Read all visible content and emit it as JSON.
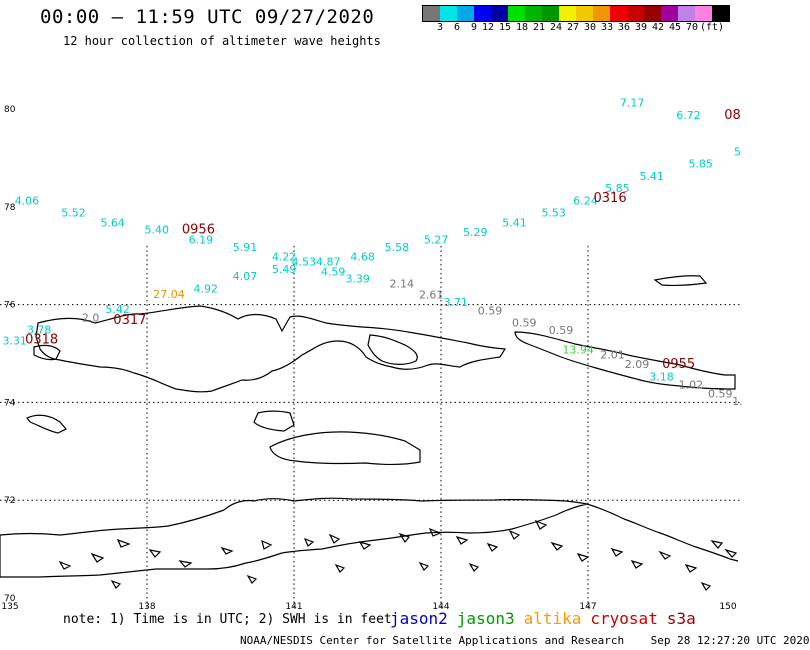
{
  "header": {
    "title": "00:00 – 11:59 UTC 09/27/2020",
    "subtitle": "12 hour collection of altimeter wave heights"
  },
  "colorbar": {
    "colors": [
      "#777777",
      "#00e5e5",
      "#00a8e6",
      "#0000f0",
      "#0000a0",
      "#00e000",
      "#00b400",
      "#009600",
      "#f0f000",
      "#f0c800",
      "#f09600",
      "#f00000",
      "#c80000",
      "#960000",
      "#a000a0",
      "#c080e8",
      "#ff80e0",
      "#000000"
    ],
    "labels": [
      "3",
      "6",
      "9",
      "12",
      "15",
      "18",
      "21",
      "24",
      "27",
      "30",
      "33",
      "36",
      "39",
      "42",
      "45",
      "70"
    ],
    "unit": "(ft)"
  },
  "axes": {
    "lat_labels": [
      "80",
      "78",
      "76",
      "74",
      "72",
      "70"
    ],
    "lon_labels": [
      "135",
      "138",
      "141",
      "144",
      "147",
      "150"
    ]
  },
  "colors": {
    "jason2": "#0000cc",
    "jason3": "#009900",
    "altika": "#ff9900",
    "cryosat": "#cc0000",
    "s3a": "#990000",
    "cyan": "#00cccc",
    "gray": "#777777",
    "lightgreen": "#44cc44",
    "orange": "#e69500"
  },
  "observations": [
    {
      "v": "4.06",
      "c": "cyan",
      "lon": 135.55,
      "lat": 78.05
    },
    {
      "v": "5.52",
      "c": "cyan",
      "lon": 136.5,
      "lat": 77.8
    },
    {
      "v": "5.64",
      "c": "cyan",
      "lon": 137.3,
      "lat": 77.6
    },
    {
      "v": "5.40",
      "c": "cyan",
      "lon": 138.2,
      "lat": 77.45
    },
    {
      "v": "6.19",
      "c": "cyan",
      "lon": 139.1,
      "lat": 77.25
    },
    {
      "v": "5.91",
      "c": "cyan",
      "lon": 140.0,
      "lat": 77.1
    },
    {
      "v": "4.22",
      "c": "cyan",
      "lon": 140.8,
      "lat": 76.9
    },
    {
      "v": "4.53",
      "c": "cyan",
      "lon": 141.2,
      "lat": 76.8
    },
    {
      "v": "4.87",
      "c": "cyan",
      "lon": 141.7,
      "lat": 76.8
    },
    {
      "v": "4.68",
      "c": "cyan",
      "lon": 142.4,
      "lat": 76.9
    },
    {
      "v": "5.58",
      "c": "cyan",
      "lon": 143.1,
      "lat": 77.1
    },
    {
      "v": "5.27",
      "c": "cyan",
      "lon": 143.9,
      "lat": 77.25
    },
    {
      "v": "5.29",
      "c": "cyan",
      "lon": 144.7,
      "lat": 77.4
    },
    {
      "v": "5.41",
      "c": "cyan",
      "lon": 145.5,
      "lat": 77.6
    },
    {
      "v": "5.53",
      "c": "cyan",
      "lon": 146.3,
      "lat": 77.8
    },
    {
      "v": "6.24",
      "c": "cyan",
      "lon": 146.95,
      "lat": 78.05
    },
    {
      "v": "5.85",
      "c": "cyan",
      "lon": 147.6,
      "lat": 78.3
    },
    {
      "v": "5.41",
      "c": "cyan",
      "lon": 148.3,
      "lat": 78.55
    },
    {
      "v": "5.85",
      "c": "cyan",
      "lon": 149.3,
      "lat": 78.8
    },
    {
      "v": "5",
      "c": "cyan",
      "lon": 150.05,
      "lat": 79.05
    },
    {
      "v": "7.17",
      "c": "cyan",
      "lon": 147.9,
      "lat": 80.05
    },
    {
      "v": "6.72",
      "c": "cyan",
      "lon": 149.05,
      "lat": 79.8
    },
    {
      "v": "5.49",
      "c": "cyan",
      "lon": 140.8,
      "lat": 76.65
    },
    {
      "v": "4.59",
      "c": "cyan",
      "lon": 141.8,
      "lat": 76.6
    },
    {
      "v": "4.07",
      "c": "cyan",
      "lon": 140.0,
      "lat": 76.5
    },
    {
      "v": "3.39",
      "c": "cyan",
      "lon": 142.3,
      "lat": 76.45
    },
    {
      "v": "4.92",
      "c": "cyan",
      "lon": 139.2,
      "lat": 76.25
    },
    {
      "v": "2.14",
      "c": "gray",
      "lon": 143.2,
      "lat": 76.35
    },
    {
      "v": "2.61",
      "c": "gray",
      "lon": 143.8,
      "lat": 76.12
    },
    {
      "v": "3.71",
      "c": "cyan",
      "lon": 144.3,
      "lat": 75.97
    },
    {
      "v": "27.04",
      "c": "orange",
      "lon": 138.45,
      "lat": 76.13
    },
    {
      "v": "5.42",
      "c": "cyan",
      "lon": 137.4,
      "lat": 75.83
    },
    {
      "v": "2.0",
      "c": "gray",
      "lon": 136.85,
      "lat": 75.65
    },
    {
      "v": "0.59",
      "c": "gray",
      "lon": 145.0,
      "lat": 75.8
    },
    {
      "v": "0.59",
      "c": "gray",
      "lon": 145.7,
      "lat": 75.55
    },
    {
      "v": "0.59",
      "c": "gray",
      "lon": 146.45,
      "lat": 75.4
    },
    {
      "v": "13.94",
      "c": "lightgreen",
      "lon": 146.8,
      "lat": 75.0
    },
    {
      "v": "2.01",
      "c": "gray",
      "lon": 147.5,
      "lat": 74.9
    },
    {
      "v": "2.09",
      "c": "gray",
      "lon": 148.0,
      "lat": 74.7
    },
    {
      "v": "3.18",
      "c": "cyan",
      "lon": 148.5,
      "lat": 74.45
    },
    {
      "v": "1.02",
      "c": "gray",
      "lon": 149.1,
      "lat": 74.28
    },
    {
      "v": "0.59",
      "c": "gray",
      "lon": 149.7,
      "lat": 74.1
    },
    {
      "v": "1.",
      "c": "gray",
      "lon": 150.05,
      "lat": 73.95
    },
    {
      "v": "3.78",
      "c": "cyan",
      "lon": 135.8,
      "lat": 75.41
    },
    {
      "v": "3.31",
      "c": "cyan",
      "lon": 135.3,
      "lat": 75.18
    }
  ],
  "time_labels": [
    {
      "t": "0956",
      "lon": 139.05,
      "lat": 77.45
    },
    {
      "t": "0316",
      "lon": 147.45,
      "lat": 78.1
    },
    {
      "t": "0317",
      "lon": 137.65,
      "lat": 75.6
    },
    {
      "t": "0318",
      "lon": 135.85,
      "lat": 75.2
    },
    {
      "t": "0955",
      "lon": 148.85,
      "lat": 74.7
    },
    {
      "t": "08",
      "lon": 149.95,
      "lat": 79.8
    }
  ],
  "footer": {
    "note": "note: 1) Time is in UTC; 2) SWH is in feet",
    "legend": [
      {
        "name": "jason2",
        "color": "#0000cc"
      },
      {
        "name": "jason3",
        "color": "#009900"
      },
      {
        "name": "altika",
        "color": "#ff9900"
      },
      {
        "name": "cryosat",
        "color": "#cc0000"
      },
      {
        "name": "s3a",
        "color": "#990000"
      }
    ],
    "credit": "NOAA/NESDIS Center for Satellite Applications and Research",
    "timestamp": "Sep 28 12:27:20 UTC 2020"
  }
}
